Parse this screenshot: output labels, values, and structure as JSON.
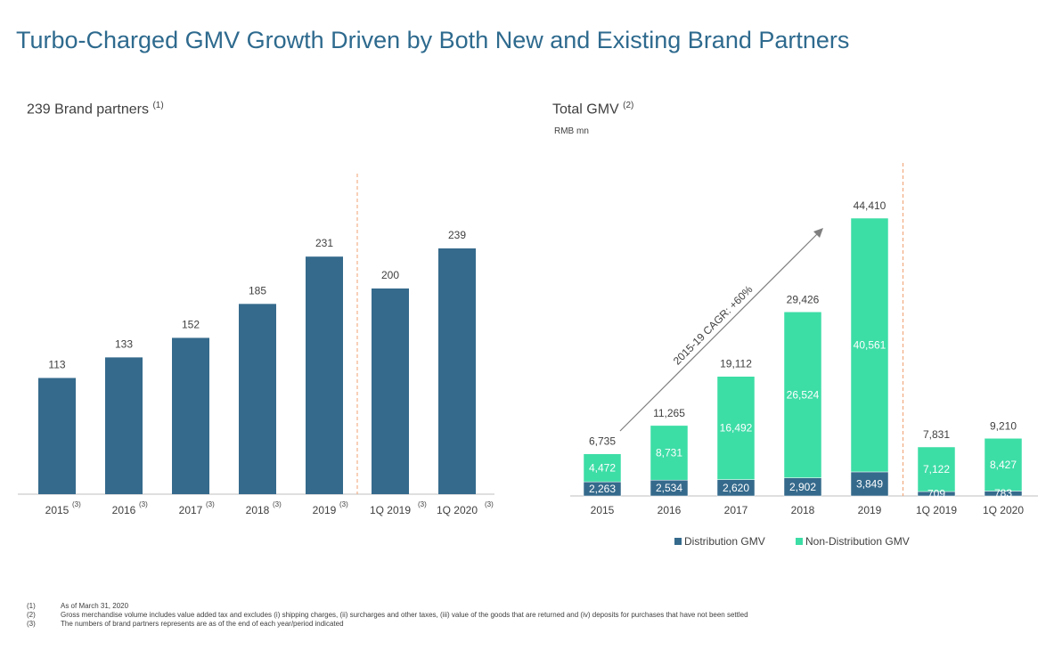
{
  "page_title": "Turbo-Charged GMV Growth Driven by Both New and Existing Brand Partners",
  "left_panel": {
    "title": "239 Brand partners",
    "title_note": "(1)"
  },
  "right_panel": {
    "title": "Total GMV",
    "title_note": "(2)",
    "unit": "RMB mn"
  },
  "colors": {
    "bar": "#356a8c",
    "distribution": "#356a8c",
    "non_distribution": "#3ddda6",
    "divider": "#f0a070",
    "title": "#2e6a8e"
  },
  "chart_data": [
    {
      "type": "bar",
      "title": "239 Brand partners",
      "categories": [
        "2015",
        "2016",
        "2017",
        "2018",
        "2019",
        "1Q 2019",
        "1Q 2020"
      ],
      "category_notes": [
        "(3)",
        "(3)",
        "(3)",
        "(3)",
        "(3)",
        "(3)",
        "(3)"
      ],
      "values": [
        113,
        133,
        152,
        185,
        231,
        200,
        239
      ],
      "ylim": [
        0,
        260
      ]
    },
    {
      "type": "bar",
      "stacked": true,
      "title": "Total GMV",
      "ylabel": "RMB mn",
      "categories": [
        "2015",
        "2016",
        "2017",
        "2018",
        "2019",
        "1Q 2019",
        "1Q 2020"
      ],
      "series": [
        {
          "name": "Distribution GMV",
          "values": [
            2263,
            2534,
            2620,
            2902,
            3849,
            709,
            783
          ],
          "labels": [
            "2,263",
            "2,534",
            "2,620",
            "2,902",
            "3,849",
            "709",
            "783"
          ]
        },
        {
          "name": "Non-Distribution GMV",
          "values": [
            4472,
            8731,
            16492,
            26524,
            40561,
            7122,
            8427
          ],
          "labels": [
            "4,472",
            "8,731",
            "16,492",
            "26,524",
            "40,561",
            "7,122",
            "8,427"
          ]
        }
      ],
      "totals": [
        6735,
        11265,
        19112,
        29426,
        44410,
        7831,
        9210
      ],
      "total_labels": [
        "6,735",
        "11,265",
        "19,112",
        "29,426",
        "44,410",
        "7,831",
        "9,210"
      ],
      "annotation": "2015-19 CAGR: +60%",
      "legend_position": "bottom",
      "ylim": [
        0,
        48000
      ]
    }
  ],
  "footnotes": [
    {
      "mark": "(1)",
      "text": "As of March 31, 2020"
    },
    {
      "mark": "(2)",
      "text": "Gross merchandise volume includes value added tax and excludes (i) shipping charges, (ii) surcharges and other taxes, (iii) value of the goods that are returned and (iv) deposits  for purchases that have not been settled"
    },
    {
      "mark": "(3)",
      "text": "The numbers of brand partners represents are as of the end of each year/period indicated"
    }
  ]
}
